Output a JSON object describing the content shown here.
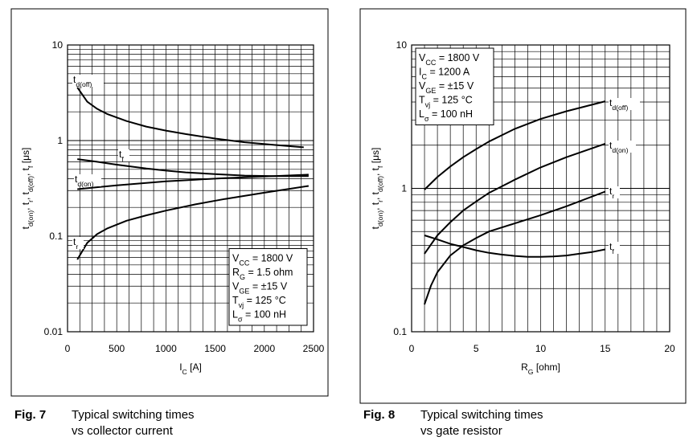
{
  "chart_data": [
    {
      "type": "line",
      "figure_label": "Fig. 7",
      "caption_lines": [
        "Typical switching times",
        "vs collector current"
      ],
      "xlabel": {
        "main": "I",
        "sub": "C",
        "unit": " [A]"
      },
      "ylabel": "tₑ(on), tr, tₑ(off), tf [μs]",
      "ylabel_parts": [
        [
          "t",
          ""
        ],
        [
          "d(on)",
          "sub"
        ],
        [
          ", t",
          ""
        ],
        [
          "r",
          "sub"
        ],
        [
          ", t",
          ""
        ],
        [
          "d(off)",
          "sub"
        ],
        [
          ", t",
          ""
        ],
        [
          "f",
          "sub"
        ],
        [
          " [μs]",
          ""
        ]
      ],
      "x_scale": "linear",
      "y_scale": "log",
      "xlim": [
        0,
        2500
      ],
      "ylim": [
        0.01,
        10
      ],
      "x_ticks": [
        0,
        500,
        1000,
        1500,
        2000,
        2500
      ],
      "x_tick_labels": [
        "0",
        "500",
        "1000",
        "1500",
        "2000",
        "2500"
      ],
      "y_tick_labels": [
        "0.01",
        "0.1",
        "1",
        "10"
      ],
      "grid": true,
      "conditions": [
        {
          "main": "V",
          "sub": "CC",
          "rest": " = 1800 V"
        },
        {
          "main": "R",
          "sub": "G",
          "rest": " = 1.5 ohm"
        },
        {
          "main": "V",
          "sub": "GE",
          "rest": " = ±15 V"
        },
        {
          "main": "T",
          "sub": "vj",
          "rest": " = 125 °C"
        },
        {
          "main": "L",
          "sub": "σ",
          "rest": " = 100 nH"
        }
      ],
      "conditions_position": "bottom-right",
      "series": [
        {
          "name": "td(off)",
          "label_main": "t",
          "label_sub": "d(off)",
          "x": [
            100,
            200,
            300,
            400,
            600,
            800,
            1000,
            1200,
            1500,
            1800,
            2100,
            2400
          ],
          "y": [
            3.6,
            2.55,
            2.15,
            1.9,
            1.6,
            1.4,
            1.27,
            1.17,
            1.05,
            0.96,
            0.9,
            0.85
          ]
        },
        {
          "name": "tf",
          "label_main": "t",
          "label_sub": "f",
          "x": [
            100,
            300,
            500,
            800,
            1000,
            1200,
            1500,
            1800,
            2100,
            2450
          ],
          "y": [
            0.64,
            0.6,
            0.56,
            0.51,
            0.485,
            0.465,
            0.445,
            0.43,
            0.425,
            0.425
          ]
        },
        {
          "name": "td(on)",
          "label_main": "t",
          "label_sub": "d(on)",
          "x": [
            100,
            300,
            500,
            800,
            1000,
            1300,
            1600,
            2000,
            2450
          ],
          "y": [
            0.31,
            0.325,
            0.34,
            0.36,
            0.375,
            0.39,
            0.405,
            0.42,
            0.44
          ]
        },
        {
          "name": "tr",
          "label_main": "t",
          "label_sub": "r",
          "x": [
            100,
            200,
            300,
            400,
            600,
            800,
            1000,
            1300,
            1600,
            2000,
            2450
          ],
          "y": [
            0.057,
            0.085,
            0.105,
            0.12,
            0.145,
            0.165,
            0.185,
            0.215,
            0.245,
            0.285,
            0.335
          ]
        }
      ]
    },
    {
      "type": "line",
      "figure_label": "Fig. 8",
      "caption_lines": [
        "Typical switching times",
        "vs  gate resistor"
      ],
      "xlabel": {
        "main": "R",
        "sub": "G",
        "unit": " [ohm]"
      },
      "ylabel_parts": [
        [
          "t",
          ""
        ],
        [
          "d(on)",
          "sub"
        ],
        [
          ", t",
          ""
        ],
        [
          "r",
          "sub"
        ],
        [
          ", t",
          ""
        ],
        [
          "d(off)",
          "sub"
        ],
        [
          ", t",
          ""
        ],
        [
          "f",
          "sub"
        ],
        [
          " [μs]",
          ""
        ]
      ],
      "x_scale": "linear",
      "y_scale": "log",
      "xlim": [
        0,
        20
      ],
      "ylim": [
        0.1,
        10
      ],
      "x_ticks": [
        0,
        5,
        10,
        15,
        20
      ],
      "x_tick_labels": [
        "0",
        "5",
        "10",
        "15",
        "20"
      ],
      "y_tick_labels": [
        "0.1",
        "1",
        "10"
      ],
      "grid": true,
      "conditions": [
        {
          "main": "V",
          "sub": "CC",
          "rest": " = 1800 V"
        },
        {
          "main": "I",
          "sub": "C",
          "rest": " = 1200 A"
        },
        {
          "main": "V",
          "sub": "GE",
          "rest": " = ±15 V"
        },
        {
          "main": "T",
          "sub": "vj",
          "rest": " = 125 °C"
        },
        {
          "main": "L",
          "sub": "σ",
          "rest": " = 100 nH"
        }
      ],
      "conditions_position": "top-left",
      "series": [
        {
          "name": "td(off)",
          "label_main": "t",
          "label_sub": "d(off)",
          "x": [
            1,
            2,
            3,
            4,
            5,
            6,
            8,
            10,
            12,
            15
          ],
          "y": [
            0.98,
            1.2,
            1.42,
            1.65,
            1.88,
            2.12,
            2.6,
            3.05,
            3.45,
            4.05
          ]
        },
        {
          "name": "td(on)",
          "label_main": "t",
          "label_sub": "d(on)",
          "x": [
            1,
            2,
            3,
            4,
            5,
            6,
            8,
            10,
            12,
            15
          ],
          "y": [
            0.35,
            0.47,
            0.58,
            0.7,
            0.81,
            0.93,
            1.15,
            1.4,
            1.65,
            2.05
          ]
        },
        {
          "name": "tr",
          "label_main": "t",
          "label_sub": "r",
          "x": [
            1,
            1.5,
            2,
            3,
            4,
            5,
            6,
            8,
            10,
            12,
            15
          ],
          "y": [
            0.155,
            0.21,
            0.26,
            0.34,
            0.4,
            0.45,
            0.5,
            0.57,
            0.65,
            0.75,
            0.95
          ]
        },
        {
          "name": "tf",
          "label_main": "t",
          "label_sub": "f",
          "x": [
            1,
            2,
            3,
            4,
            5,
            6,
            7,
            8,
            9,
            10,
            11,
            12,
            13,
            14,
            15
          ],
          "y": [
            0.47,
            0.44,
            0.41,
            0.39,
            0.37,
            0.355,
            0.345,
            0.338,
            0.333,
            0.333,
            0.335,
            0.34,
            0.35,
            0.36,
            0.375
          ]
        }
      ]
    }
  ]
}
